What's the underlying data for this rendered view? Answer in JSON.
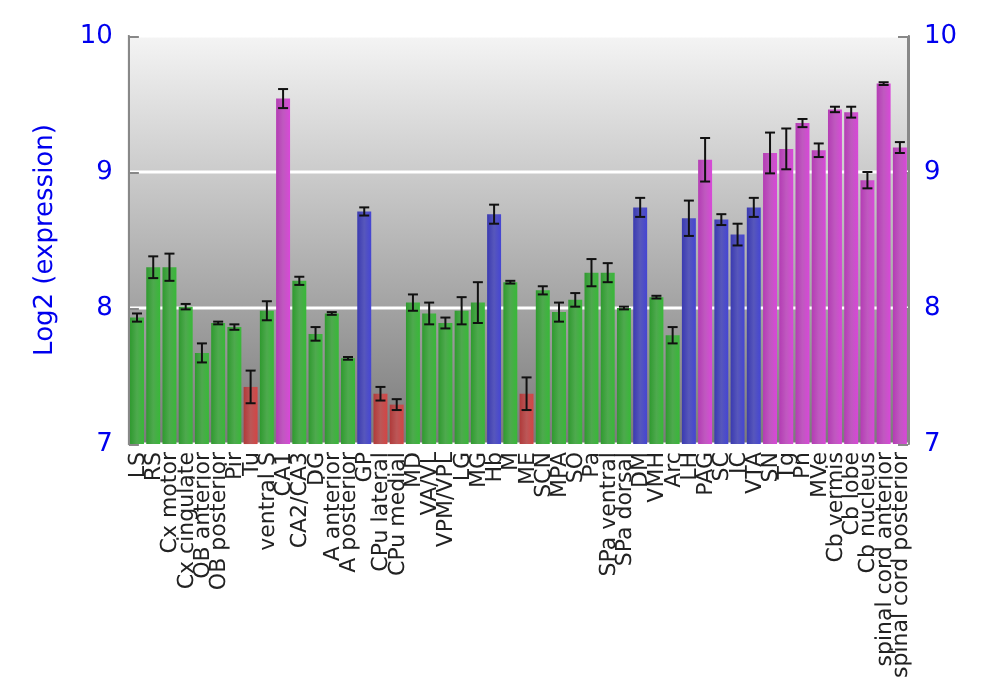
{
  "chart_data": {
    "type": "bar",
    "ylabel": "Log2 (expression)",
    "categories": [
      "LS",
      "RS",
      "Cx motor",
      "Cx cingulate",
      "OB anterior",
      "OB posterior",
      "Pir",
      "Tu",
      "ventral S",
      "CA1",
      "CA2/CA3",
      "DG",
      "A anterior",
      "A posterior",
      "GP",
      "CPu lateral",
      "CPu medial",
      "MD",
      "VA/VL",
      "VPM/VPL",
      "LG",
      "MG",
      "Hb",
      "M",
      "ME",
      "SCN",
      "MPA",
      "SO",
      "Pa",
      "SPa ventral",
      "SPa dorsal",
      "DM",
      "VMH",
      "Arc",
      "LH",
      "PAG",
      "SC",
      "IC",
      "VTA",
      "SN",
      "Tg",
      "Pn",
      "MVe",
      "Cb vermis",
      "Cb lobe",
      "Cb nucleus",
      "spinal cord anterior",
      "spinal cord posterior"
    ],
    "values": [
      7.93,
      8.3,
      8.3,
      8.01,
      7.67,
      7.89,
      7.86,
      7.42,
      7.98,
      9.54,
      8.2,
      7.81,
      7.96,
      7.63,
      8.71,
      7.37,
      7.29,
      8.04,
      7.96,
      7.89,
      7.98,
      8.04,
      8.69,
      8.19,
      7.37,
      8.13,
      7.97,
      8.06,
      8.26,
      8.26,
      8.0,
      8.74,
      8.08,
      7.8,
      8.66,
      9.09,
      8.65,
      8.54,
      8.74,
      9.14,
      9.17,
      9.36,
      9.16,
      9.46,
      9.44,
      8.94,
      9.65,
      9.18
    ],
    "errors": [
      0.03,
      0.08,
      0.1,
      0.02,
      0.07,
      0.01,
      0.02,
      0.12,
      0.07,
      0.07,
      0.03,
      0.05,
      0.01,
      0.01,
      0.03,
      0.05,
      0.04,
      0.06,
      0.08,
      0.04,
      0.1,
      0.15,
      0.07,
      0.01,
      0.12,
      0.03,
      0.07,
      0.05,
      0.1,
      0.07,
      0.01,
      0.07,
      0.01,
      0.06,
      0.13,
      0.16,
      0.04,
      0.08,
      0.07,
      0.15,
      0.15,
      0.03,
      0.05,
      0.02,
      0.04,
      0.06,
      0.01,
      0.04
    ],
    "colors": [
      "#2f9a2f",
      "#2f9a2f",
      "#2f9a2f",
      "#2f9a2f",
      "#2f9a2f",
      "#2f9a2f",
      "#2f9a2f",
      "#b03a3a",
      "#2f9a2f",
      "#b43cb4",
      "#2f9a2f",
      "#2f9a2f",
      "#2f9a2f",
      "#2f9a2f",
      "#3a3ab0",
      "#b03a3a",
      "#b03a3a",
      "#2f9a2f",
      "#2f9a2f",
      "#2f9a2f",
      "#2f9a2f",
      "#2f9a2f",
      "#3a3ab0",
      "#2f9a2f",
      "#b03a3a",
      "#2f9a2f",
      "#2f9a2f",
      "#2f9a2f",
      "#2f9a2f",
      "#2f9a2f",
      "#2f9a2f",
      "#3a3ab0",
      "#2f9a2f",
      "#2f9a2f",
      "#3a3ab0",
      "#b43cb4",
      "#3a3ab0",
      "#3a3ab0",
      "#3a3ab0",
      "#b43cb4",
      "#b43cb4",
      "#b43cb4",
      "#b43cb4",
      "#b43cb4",
      "#b43cb4",
      "#b43cb4",
      "#b43cb4",
      "#b43cb4"
    ],
    "ylim": [
      7,
      10
    ],
    "yticks": [
      7,
      8,
      9,
      10
    ],
    "y2lim": [
      7,
      10
    ],
    "y2ticks": [
      7,
      8,
      9,
      10
    ],
    "grid": "y"
  }
}
